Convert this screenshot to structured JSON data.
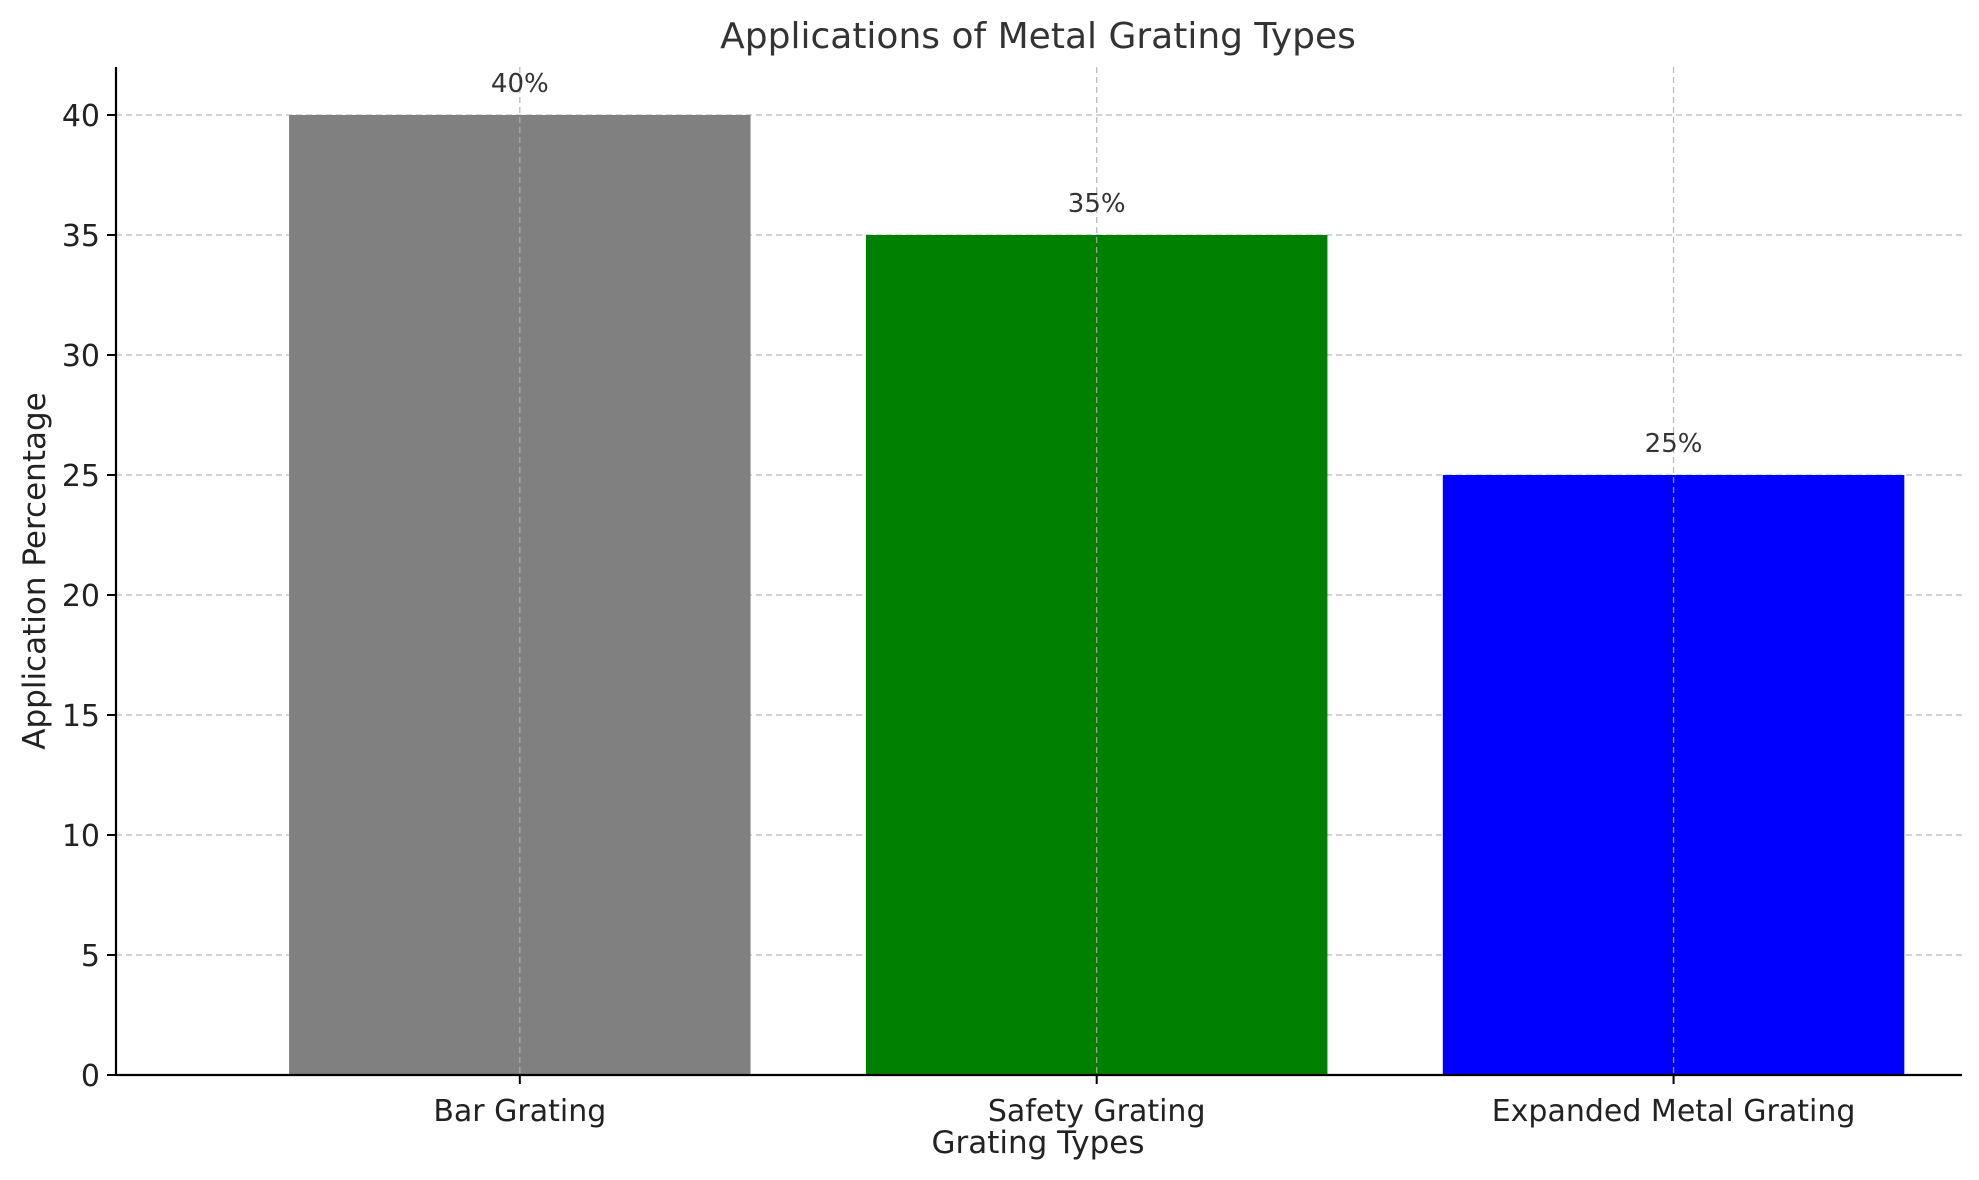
{
  "chart_data": {
    "type": "bar",
    "title": "Applications of Metal Grating Types",
    "xlabel": "Grating Types",
    "ylabel": "Application Percentage",
    "categories": [
      "Bar Grating",
      "Safety Grating",
      "Expanded Metal Grating"
    ],
    "values": [
      40,
      35,
      25
    ],
    "data_labels": [
      "40%",
      "35%",
      "25%"
    ],
    "colors": [
      "#808080",
      "#008000",
      "#0000ff"
    ],
    "ylim": [
      0,
      42
    ],
    "yticks": [
      0,
      5,
      10,
      15,
      20,
      25,
      30,
      35,
      40
    ],
    "grid": true
  }
}
